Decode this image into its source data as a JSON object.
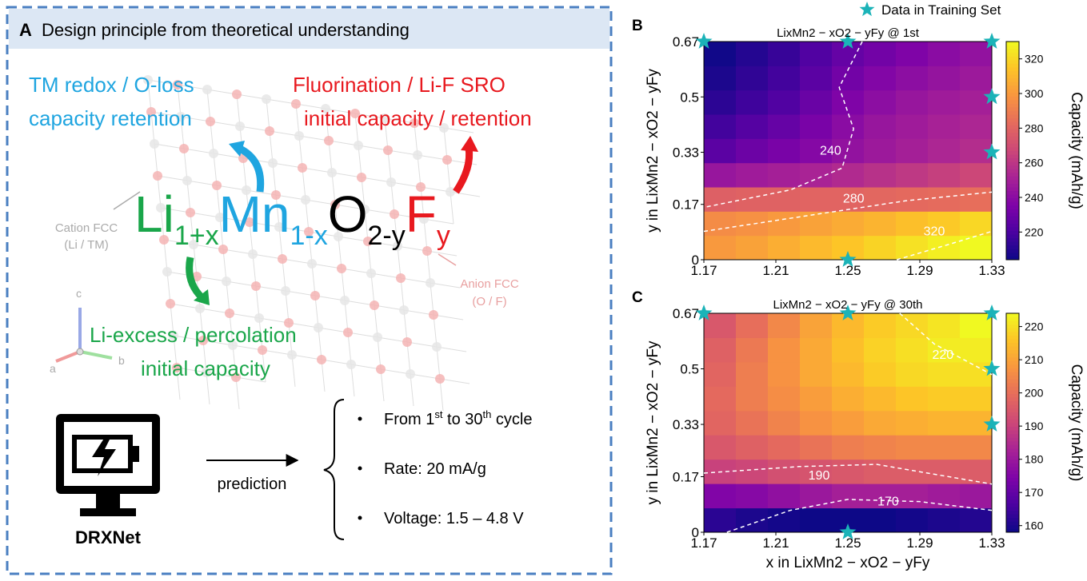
{
  "panel_a": {
    "label": "A",
    "title": "Design principle from theoretical understanding",
    "tm_redox": [
      "TM redox / O-loss",
      "capacity retention"
    ],
    "fluorination": [
      "Fluorination / Li-F SRO",
      "initial capacity / retention"
    ],
    "cation_fcc": [
      "Cation FCC",
      "(Li / TM)"
    ],
    "anion_fcc": [
      "Anion FCC",
      "(O / F)"
    ],
    "formula": [
      "Li",
      "1+x",
      "Mn",
      "1-x",
      "O",
      "2-y",
      "F",
      "y"
    ],
    "li_excess": [
      "Li-excess / percolation",
      "initial capacity"
    ],
    "axes": [
      "a",
      "b",
      "c"
    ],
    "model": "DRXNet",
    "arrow_label": "prediction",
    "bullets": [
      [
        "From 1",
        "st",
        " to 30",
        "th",
        " cycle"
      ],
      [
        "Rate: 20 mA/g"
      ],
      [
        "Voltage: 1.5 – 4.8 V"
      ]
    ]
  },
  "legend": "Data in Training Set",
  "marker_color": "#1bb3b8",
  "chart_data": [
    {
      "type": "heatmap",
      "label": "B",
      "title": "LixMn2 − xO2 − yFy @ 1st",
      "ylabel": "y in LixMn2 − xO2 − yFy",
      "colorbar_label": "Capacity (mAh/g)",
      "colormap": "plasma",
      "x": [
        1.17,
        1.19,
        1.21,
        1.23,
        1.25,
        1.27,
        1.29,
        1.31,
        1.33
      ],
      "y": [
        0,
        0.08,
        0.17,
        0.25,
        0.33,
        0.42,
        0.5,
        0.58,
        0.67
      ],
      "values": [
        [
          300,
          303,
          307,
          311,
          315,
          319,
          323,
          327,
          330
        ],
        [
          295,
          297,
          300,
          303,
          306,
          309,
          313,
          316,
          320
        ],
        [
          278,
          279,
          279,
          280,
          280,
          281,
          282,
          283,
          284
        ],
        [
          245,
          248,
          250,
          252,
          255,
          258,
          261,
          264,
          267
        ],
        [
          225,
          230,
          234,
          238,
          243,
          247,
          250,
          253,
          256
        ],
        [
          218,
          223,
          228,
          234,
          240,
          245,
          248,
          251,
          253
        ],
        [
          212,
          217,
          222,
          229,
          236,
          241,
          245,
          248,
          250
        ],
        [
          208,
          213,
          218,
          225,
          232,
          237,
          241,
          244,
          247
        ],
        [
          205,
          210,
          215,
          222,
          228,
          232,
          236,
          240,
          243
        ]
      ],
      "xlim": [
        1.17,
        1.33
      ],
      "xticks": [
        1.17,
        1.21,
        1.25,
        1.29,
        1.33
      ],
      "ylim": [
        0,
        0.67
      ],
      "yticks": [
        0,
        0.17,
        0.33,
        0.5,
        0.67
      ],
      "clim": [
        204,
        330
      ],
      "cticks": [
        220,
        240,
        260,
        280,
        300,
        320
      ],
      "contour_levels": [
        240,
        280,
        320
      ],
      "training_points": {
        "x": [
          1.17,
          1.25,
          1.33,
          1.33,
          1.33,
          1.25
        ],
        "y": [
          0.67,
          0.67,
          0.67,
          0.5,
          0.33,
          0
        ]
      }
    },
    {
      "type": "heatmap",
      "label": "C",
      "title": "LixMn2 − xO2 − yFy @ 30th",
      "xlabel": "x in LixMn2 − xO2 − yFy",
      "ylabel": "y in LixMn2 − xO2 − yFy",
      "colorbar_label": "Capacity (mAh/g)",
      "colormap": "plasma",
      "x": [
        1.17,
        1.19,
        1.21,
        1.23,
        1.25,
        1.27,
        1.29,
        1.31,
        1.33
      ],
      "y": [
        0,
        0.08,
        0.17,
        0.25,
        0.33,
        0.42,
        0.5,
        0.58,
        0.67
      ],
      "values": [
        [
          162,
          160,
          159,
          158,
          158,
          158,
          159,
          160,
          161
        ],
        [
          175,
          176,
          178,
          180,
          182,
          182,
          182,
          181,
          180
        ],
        [
          190,
          191,
          193,
          194,
          195,
          196,
          196,
          196,
          196
        ],
        [
          195,
          197,
          199,
          201,
          203,
          204,
          205,
          205,
          205
        ],
        [
          198,
          201,
          204,
          207,
          209,
          211,
          212,
          213,
          213
        ],
        [
          199,
          203,
          206,
          209,
          212,
          214,
          216,
          217,
          217
        ],
        [
          198,
          203,
          207,
          211,
          214,
          217,
          219,
          220,
          220
        ],
        [
          197,
          202,
          207,
          211,
          215,
          218,
          220,
          222,
          222
        ],
        [
          195,
          200,
          205,
          210,
          214,
          217,
          219,
          221,
          224
        ]
      ],
      "xlim": [
        1.17,
        1.33
      ],
      "xticks": [
        1.17,
        1.21,
        1.25,
        1.29,
        1.33
      ],
      "ylim": [
        0,
        0.67
      ],
      "yticks": [
        0,
        0.17,
        0.33,
        0.5,
        0.67
      ],
      "clim": [
        158,
        224
      ],
      "cticks": [
        160,
        170,
        180,
        190,
        200,
        210,
        220
      ],
      "contour_levels": [
        220,
        190,
        170
      ],
      "training_points": {
        "x": [
          1.17,
          1.25,
          1.33,
          1.33,
          1.33,
          1.25
        ],
        "y": [
          0.67,
          0.67,
          0.67,
          0.5,
          0.33,
          0
        ]
      }
    }
  ]
}
